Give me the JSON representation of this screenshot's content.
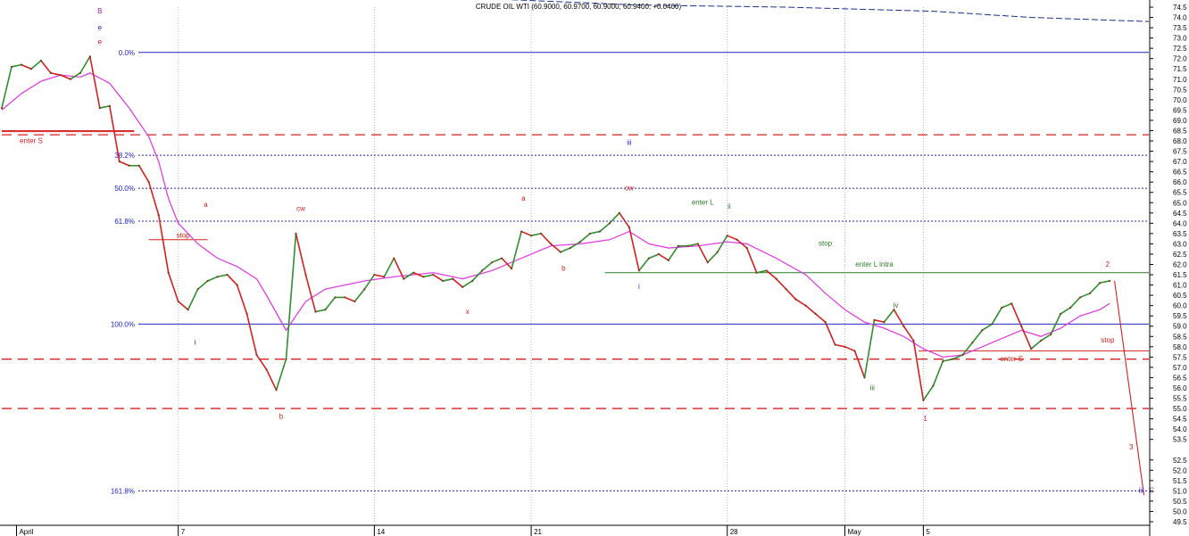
{
  "chart_data": {
    "type": "line",
    "title": "CRUDE OIL WTI (60.9000, 60.9700, 60.9000, 60.9400, +0.0400)",
    "xlabel": "",
    "ylabel": "",
    "ylim": [
      49.5,
      74.5
    ],
    "yticks": [
      74.5,
      74.0,
      73.5,
      73.0,
      72.5,
      72.0,
      71.5,
      71.0,
      70.5,
      70.0,
      69.5,
      69.0,
      68.5,
      68.0,
      67.5,
      67.0,
      66.5,
      66.0,
      65.5,
      65.0,
      64.5,
      64.0,
      63.5,
      63.0,
      62.5,
      62.0,
      61.5,
      61.0,
      60.5,
      60.0,
      59.5,
      59.0,
      58.5,
      58.0,
      57.5,
      57.0,
      56.5,
      56.0,
      55.5,
      55.0,
      54.5,
      54.0,
      53.5,
      52.5,
      52.0,
      51.5,
      51.0,
      50.5,
      50.0,
      49.5
    ],
    "xlim": [
      0,
      117
    ],
    "x_ticks": [
      {
        "x": 1.5,
        "label": "April"
      },
      {
        "x": 18,
        "label": "7"
      },
      {
        "x": 38,
        "label": "14"
      },
      {
        "x": 54,
        "label": "21"
      },
      {
        "x": 74,
        "label": "28"
      },
      {
        "x": 86,
        "label": "May"
      },
      {
        "x": 94,
        "label": "5"
      }
    ],
    "vertical_gridlines_x": [
      18,
      38,
      54,
      74,
      86,
      94
    ],
    "grid": "vertical dotted",
    "colors": {
      "up_bar": "#2f8f2f",
      "down_bar": "#d62020",
      "moving_average": "#e040e0",
      "fib_line": "#2222cc",
      "dashed_level": "#d62020",
      "annotation_red": "#d62020",
      "annotation_blue": "#2222cc",
      "annotation_green": "#2a7a2a",
      "trend_line": "#1a2e8a"
    },
    "price_series": [
      {
        "x": 0,
        "y": 69.6
      },
      {
        "x": 1,
        "y": 71.6
      },
      {
        "x": 2,
        "y": 71.7
      },
      {
        "x": 3,
        "y": 71.5
      },
      {
        "x": 4,
        "y": 71.9
      },
      {
        "x": 5,
        "y": 71.3
      },
      {
        "x": 6,
        "y": 71.2
      },
      {
        "x": 7,
        "y": 71.0
      },
      {
        "x": 8,
        "y": 71.3
      },
      {
        "x": 9,
        "y": 72.1
      },
      {
        "x": 10,
        "y": 69.6
      },
      {
        "x": 11,
        "y": 69.7
      },
      {
        "x": 12,
        "y": 67.0
      },
      {
        "x": 13,
        "y": 66.8
      },
      {
        "x": 14,
        "y": 66.8
      },
      {
        "x": 15,
        "y": 66.0
      },
      {
        "x": 16,
        "y": 64.4
      },
      {
        "x": 17,
        "y": 61.6
      },
      {
        "x": 18,
        "y": 60.2
      },
      {
        "x": 19,
        "y": 59.8
      },
      {
        "x": 20,
        "y": 60.8
      },
      {
        "x": 21,
        "y": 61.2
      },
      {
        "x": 22,
        "y": 61.4
      },
      {
        "x": 23,
        "y": 61.5
      },
      {
        "x": 24,
        "y": 61.0
      },
      {
        "x": 25,
        "y": 59.6
      },
      {
        "x": 26,
        "y": 57.6
      },
      {
        "x": 27,
        "y": 56.9
      },
      {
        "x": 28,
        "y": 55.9
      },
      {
        "x": 29,
        "y": 57.4
      },
      {
        "x": 30,
        "y": 63.5
      },
      {
        "x": 31,
        "y": 61.5
      },
      {
        "x": 32,
        "y": 59.7
      },
      {
        "x": 33,
        "y": 59.8
      },
      {
        "x": 34,
        "y": 60.4
      },
      {
        "x": 35,
        "y": 60.4
      },
      {
        "x": 36,
        "y": 60.2
      },
      {
        "x": 37,
        "y": 60.8
      },
      {
        "x": 38,
        "y": 61.5
      },
      {
        "x": 39,
        "y": 61.4
      },
      {
        "x": 40,
        "y": 62.3
      },
      {
        "x": 41,
        "y": 61.3
      },
      {
        "x": 42,
        "y": 61.6
      },
      {
        "x": 43,
        "y": 61.4
      },
      {
        "x": 44,
        "y": 61.5
      },
      {
        "x": 45,
        "y": 61.2
      },
      {
        "x": 46,
        "y": 61.3
      },
      {
        "x": 47,
        "y": 60.9
      },
      {
        "x": 48,
        "y": 61.2
      },
      {
        "x": 49,
        "y": 61.7
      },
      {
        "x": 50,
        "y": 62.1
      },
      {
        "x": 51,
        "y": 62.3
      },
      {
        "x": 52,
        "y": 61.8
      },
      {
        "x": 53,
        "y": 63.6
      },
      {
        "x": 54,
        "y": 63.4
      },
      {
        "x": 55,
        "y": 63.5
      },
      {
        "x": 56,
        "y": 63.0
      },
      {
        "x": 57,
        "y": 62.6
      },
      {
        "x": 58,
        "y": 62.8
      },
      {
        "x": 59,
        "y": 63.1
      },
      {
        "x": 60,
        "y": 63.5
      },
      {
        "x": 61,
        "y": 63.6
      },
      {
        "x": 62,
        "y": 64.0
      },
      {
        "x": 63,
        "y": 64.5
      },
      {
        "x": 64,
        "y": 63.8
      },
      {
        "x": 65,
        "y": 61.7
      },
      {
        "x": 66,
        "y": 62.3
      },
      {
        "x": 67,
        "y": 62.5
      },
      {
        "x": 68,
        "y": 62.2
      },
      {
        "x": 69,
        "y": 62.9
      },
      {
        "x": 70,
        "y": 62.9
      },
      {
        "x": 71,
        "y": 63.0
      },
      {
        "x": 72,
        "y": 62.1
      },
      {
        "x": 73,
        "y": 62.6
      },
      {
        "x": 74,
        "y": 63.4
      },
      {
        "x": 75,
        "y": 63.2
      },
      {
        "x": 76,
        "y": 62.8
      },
      {
        "x": 77,
        "y": 61.6
      },
      {
        "x": 78,
        "y": 61.7
      },
      {
        "x": 79,
        "y": 61.3
      },
      {
        "x": 80,
        "y": 60.8
      },
      {
        "x": 81,
        "y": 60.3
      },
      {
        "x": 82,
        "y": 60.0
      },
      {
        "x": 83,
        "y": 59.6
      },
      {
        "x": 84,
        "y": 59.2
      },
      {
        "x": 85,
        "y": 58.1
      },
      {
        "x": 86,
        "y": 58.0
      },
      {
        "x": 87,
        "y": 57.8
      },
      {
        "x": 88,
        "y": 56.5
      },
      {
        "x": 89,
        "y": 59.3
      },
      {
        "x": 90,
        "y": 59.2
      },
      {
        "x": 91,
        "y": 59.8
      },
      {
        "x": 92,
        "y": 59.0
      },
      {
        "x": 93,
        "y": 58.3
      },
      {
        "x": 94,
        "y": 55.4
      },
      {
        "x": 95,
        "y": 56.1
      },
      {
        "x": 96,
        "y": 57.3
      },
      {
        "x": 97,
        "y": 57.4
      },
      {
        "x": 98,
        "y": 57.6
      },
      {
        "x": 99,
        "y": 58.2
      },
      {
        "x": 100,
        "y": 58.8
      },
      {
        "x": 101,
        "y": 59.1
      },
      {
        "x": 102,
        "y": 59.9
      },
      {
        "x": 103,
        "y": 60.1
      },
      {
        "x": 104,
        "y": 59.0
      },
      {
        "x": 105,
        "y": 57.9
      },
      {
        "x": 106,
        "y": 58.3
      },
      {
        "x": 107,
        "y": 58.6
      },
      {
        "x": 108,
        "y": 59.6
      },
      {
        "x": 109,
        "y": 59.9
      },
      {
        "x": 110,
        "y": 60.4
      },
      {
        "x": 111,
        "y": 60.6
      },
      {
        "x": 112,
        "y": 61.1
      },
      {
        "x": 113,
        "y": 61.2
      }
    ],
    "moving_average": [
      {
        "x": 0,
        "y": 69.5
      },
      {
        "x": 2,
        "y": 70.3
      },
      {
        "x": 4,
        "y": 70.9
      },
      {
        "x": 6,
        "y": 71.2
      },
      {
        "x": 8,
        "y": 71.1
      },
      {
        "x": 9,
        "y": 71.3
      },
      {
        "x": 11,
        "y": 70.8
      },
      {
        "x": 13,
        "y": 69.6
      },
      {
        "x": 15,
        "y": 68.2
      },
      {
        "x": 16,
        "y": 67.0
      },
      {
        "x": 17,
        "y": 65.2
      },
      {
        "x": 18,
        "y": 64.0
      },
      {
        "x": 20,
        "y": 63.0
      },
      {
        "x": 22,
        "y": 62.3
      },
      {
        "x": 24,
        "y": 61.9
      },
      {
        "x": 26,
        "y": 61.3
      },
      {
        "x": 27,
        "y": 60.5
      },
      {
        "x": 29,
        "y": 58.8
      },
      {
        "x": 31,
        "y": 60.2
      },
      {
        "x": 33,
        "y": 60.8
      },
      {
        "x": 35,
        "y": 61.0
      },
      {
        "x": 37,
        "y": 61.2
      },
      {
        "x": 40,
        "y": 61.4
      },
      {
        "x": 44,
        "y": 61.6
      },
      {
        "x": 47,
        "y": 61.3
      },
      {
        "x": 50,
        "y": 61.7
      },
      {
        "x": 53,
        "y": 62.3
      },
      {
        "x": 56,
        "y": 62.9
      },
      {
        "x": 59,
        "y": 63.0
      },
      {
        "x": 62,
        "y": 63.2
      },
      {
        "x": 64,
        "y": 63.6
      },
      {
        "x": 66,
        "y": 63.0
      },
      {
        "x": 68,
        "y": 62.8
      },
      {
        "x": 71,
        "y": 62.9
      },
      {
        "x": 74,
        "y": 63.1
      },
      {
        "x": 76,
        "y": 63.0
      },
      {
        "x": 79,
        "y": 62.3
      },
      {
        "x": 82,
        "y": 61.5
      },
      {
        "x": 84,
        "y": 60.6
      },
      {
        "x": 86,
        "y": 59.8
      },
      {
        "x": 88,
        "y": 59.2
      },
      {
        "x": 90,
        "y": 58.9
      },
      {
        "x": 92,
        "y": 58.5
      },
      {
        "x": 94,
        "y": 57.9
      },
      {
        "x": 96,
        "y": 57.5
      },
      {
        "x": 98,
        "y": 57.6
      },
      {
        "x": 100,
        "y": 58.0
      },
      {
        "x": 102,
        "y": 58.4
      },
      {
        "x": 104,
        "y": 58.8
      },
      {
        "x": 106,
        "y": 58.5
      },
      {
        "x": 108,
        "y": 58.9
      },
      {
        "x": 110,
        "y": 59.5
      },
      {
        "x": 112,
        "y": 59.8
      },
      {
        "x": 113,
        "y": 60.1
      }
    ],
    "fib_levels": [
      {
        "label": "0.0%",
        "y": 72.3,
        "style": "solid"
      },
      {
        "label": "38.2%",
        "y": 67.3,
        "style": "dotted"
      },
      {
        "label": "50.0%",
        "y": 65.7,
        "style": "dotted"
      },
      {
        "label": "61.8%",
        "y": 64.1,
        "style": "dotted"
      },
      {
        "label": "100.0%",
        "y": 59.1,
        "style": "solid"
      },
      {
        "label": "161.8%",
        "y": 51.0,
        "style": "dotted"
      }
    ],
    "dashed_levels": [
      68.3,
      57.4,
      55.0
    ],
    "horizontal_lines": [
      {
        "x1": 0,
        "x2": 13.5,
        "y": 68.5,
        "color": "red"
      },
      {
        "x1": 0,
        "x2": 13.5,
        "y": 68.45,
        "color": "red"
      },
      {
        "x1": 15,
        "x2": 21,
        "y": 63.2,
        "color": "red"
      },
      {
        "x1": 61.5,
        "x2": 117,
        "y": 61.6,
        "color": "green"
      },
      {
        "x1": 93.5,
        "x2": 117,
        "y": 57.8,
        "color": "red"
      }
    ],
    "projection": [
      {
        "x": 113.5,
        "y": 61.2
      },
      {
        "x": 116.5,
        "y": 50.8
      }
    ],
    "trend_line": [
      {
        "x": 22,
        "y": 75.4
      },
      {
        "x": 35,
        "y": 75.1
      },
      {
        "x": 50,
        "y": 74.9
      },
      {
        "x": 65,
        "y": 74.6
      },
      {
        "x": 80,
        "y": 74.5
      },
      {
        "x": 95,
        "y": 74.3
      },
      {
        "x": 105,
        "y": 74.0
      },
      {
        "x": 117,
        "y": 73.8
      }
    ],
    "annotations": [
      {
        "text": "B",
        "x": 10,
        "y": 74.2,
        "color": "purple"
      },
      {
        "text": "e",
        "x": 10,
        "y": 73.4,
        "color": "blue"
      },
      {
        "text": "e",
        "x": 10,
        "y": 72.7,
        "color": "red"
      },
      {
        "text": "enter S",
        "x": 3,
        "y": 67.9,
        "color": "red"
      },
      {
        "text": "stop",
        "x": 18.5,
        "y": 63.3,
        "color": "red"
      },
      {
        "text": "a",
        "x": 20.8,
        "y": 64.8,
        "color": "red"
      },
      {
        "text": "i",
        "x": 19.7,
        "y": 58.1,
        "color": "blue"
      },
      {
        "text": "b",
        "x": 28.5,
        "y": 54.5,
        "color": "red"
      },
      {
        "text": "cw",
        "x": 30.5,
        "y": 64.6,
        "color": "red"
      },
      {
        "text": "x",
        "x": 47.5,
        "y": 59.6,
        "color": "red"
      },
      {
        "text": "a",
        "x": 53.2,
        "y": 65.1,
        "color": "red"
      },
      {
        "text": "b",
        "x": 57.3,
        "y": 61.7,
        "color": "red"
      },
      {
        "text": "iii",
        "x": 64,
        "y": 67.8,
        "color": "blue"
      },
      {
        "text": "cw",
        "x": 64,
        "y": 65.6,
        "color": "red"
      },
      {
        "text": "i",
        "x": 65,
        "y": 60.8,
        "color": "blue"
      },
      {
        "text": "enter L",
        "x": 71.5,
        "y": 64.9,
        "color": "green"
      },
      {
        "text": "ii",
        "x": 74.2,
        "y": 64.7,
        "color": "green"
      },
      {
        "text": "stop",
        "x": 84,
        "y": 62.9,
        "color": "green"
      },
      {
        "text": "enter L intra",
        "x": 89,
        "y": 61.9,
        "color": "green"
      },
      {
        "text": "iv",
        "x": 91.2,
        "y": 59.9,
        "color": "green"
      },
      {
        "text": "iii",
        "x": 88.8,
        "y": 55.9,
        "color": "green"
      },
      {
        "text": "1",
        "x": 94.2,
        "y": 54.4,
        "color": "red"
      },
      {
        "text": "enter S",
        "x": 103,
        "y": 57.3,
        "color": "red"
      },
      {
        "text": "stop",
        "x": 112.8,
        "y": 58.2,
        "color": "red"
      },
      {
        "text": "2",
        "x": 112.8,
        "y": 61.9,
        "color": "red"
      },
      {
        "text": "3",
        "x": 115.2,
        "y": 53.0,
        "color": "red"
      },
      {
        "text": "iii",
        "x": 116.2,
        "y": 50.9,
        "color": "blue"
      },
      {
        "text": "C",
        "x": 117.3,
        "y": 50.9,
        "color": "purple"
      }
    ]
  }
}
